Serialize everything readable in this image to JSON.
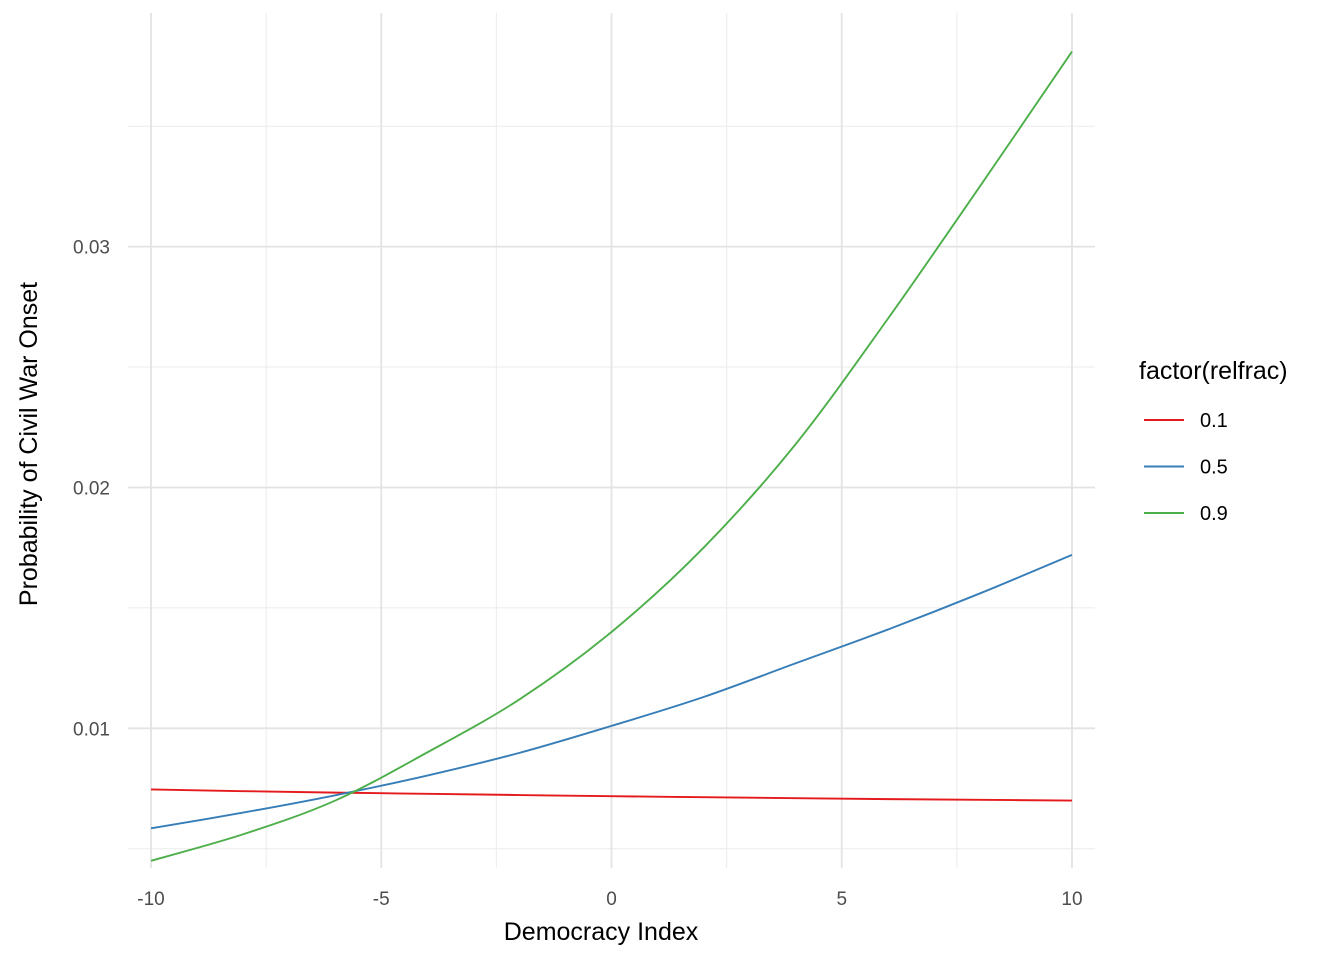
{
  "chart_data": {
    "type": "line",
    "title": "",
    "xlabel": "Democracy Index",
    "ylabel": "Probability of Civil War Onset",
    "xlim": [
      -10.5,
      10.5
    ],
    "ylim": [
      0.0042,
      0.0397
    ],
    "x_ticks": [
      -10,
      -5,
      0,
      5,
      10
    ],
    "x_tick_labels": [
      "-10",
      "-5",
      "0",
      "5",
      "10"
    ],
    "x_minor_ticks": [
      -7.5,
      -2.5,
      2.5,
      7.5
    ],
    "y_ticks": [
      0.01,
      0.02,
      0.03
    ],
    "y_tick_labels": [
      "0.01",
      "0.02",
      "0.03"
    ],
    "y_minor_ticks": [
      0.005,
      0.015,
      0.025,
      0.035
    ],
    "grid": true,
    "legend": {
      "title": "factor(relfrac)",
      "position": "right"
    },
    "x": [
      -10,
      -8,
      -6,
      -4,
      -2,
      0,
      2,
      4,
      6,
      8,
      10
    ],
    "series": [
      {
        "name": "0.1",
        "color": "#e41a1c",
        "values": [
          0.00746,
          0.00739,
          0.00733,
          0.00728,
          0.00723,
          0.00718,
          0.00714,
          0.0071,
          0.00706,
          0.00703,
          0.007
        ]
      },
      {
        "name": "0.5",
        "color": "#377eb8",
        "values": [
          0.00585,
          0.0065,
          0.00722,
          0.00804,
          0.00898,
          0.0101,
          0.0113,
          0.0127,
          0.0141,
          0.0156,
          0.0172
        ]
      },
      {
        "name": "0.9",
        "color": "#4daf4a",
        "values": [
          0.0045,
          0.0056,
          0.007,
          0.009,
          0.0112,
          0.014,
          0.0175,
          0.0218,
          0.027,
          0.0325,
          0.0381
        ]
      }
    ]
  }
}
